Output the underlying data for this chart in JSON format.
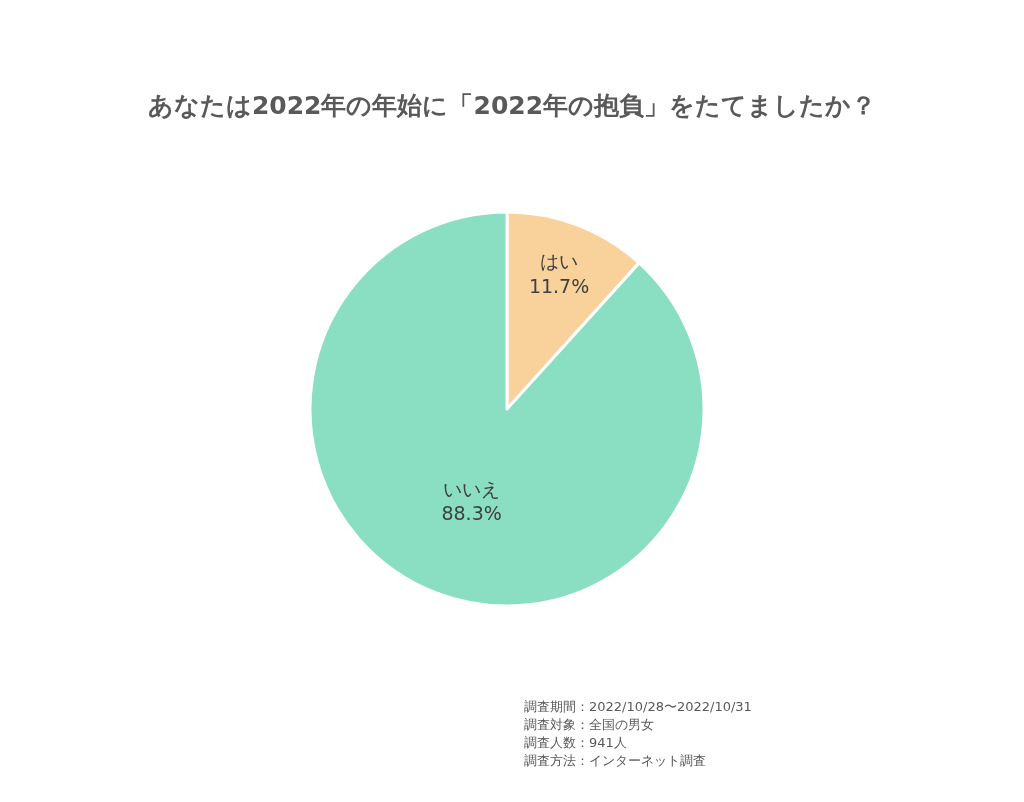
{
  "chart_data": {
    "type": "pie",
    "title": "あなたは2022年の年始に「2022年の抱負」をたてましたか？",
    "categories": [
      "はい",
      "いいえ"
    ],
    "values": [
      11.7,
      88.3
    ],
    "colors": [
      "#f9d29b",
      "#8adfc2"
    ],
    "value_labels": [
      "11.7%",
      "88.3%"
    ],
    "annotations": [
      "調査期間：2022/10/28〜2022/10/31",
      "調査対象：全国の男女",
      "調査人数：941人",
      "調査方法：インターネット調査"
    ]
  }
}
